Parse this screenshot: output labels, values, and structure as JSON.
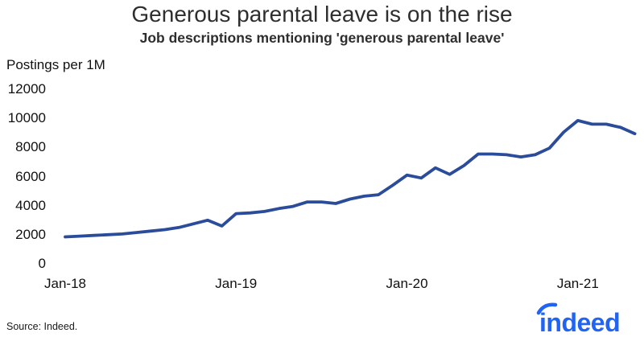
{
  "chart": {
    "title": "Generous parental leave is on the rise",
    "subtitle": "Job descriptions mentioning 'generous parental leave'",
    "y_unit_label": "Postings per 1M"
  },
  "chart_data": {
    "type": "line",
    "title": "Generous parental leave is on the rise",
    "subtitle": "Job descriptions mentioning 'generous parental leave'",
    "xlabel": "",
    "ylabel": "Postings per 1M",
    "ylim": [
      0,
      12000
    ],
    "y_ticks": [
      0,
      2000,
      4000,
      6000,
      8000,
      10000,
      12000
    ],
    "x_tick_labels": [
      "Jan-18",
      "Jan-19",
      "Jan-20",
      "Jan-21"
    ],
    "grid": false,
    "legend_position": "none",
    "line_color": "#2a4c9b",
    "x": [
      "Jan-18",
      "Feb-18",
      "Mar-18",
      "Apr-18",
      "May-18",
      "Jun-18",
      "Jul-18",
      "Aug-18",
      "Sep-18",
      "Oct-18",
      "Nov-18",
      "Dec-18",
      "Jan-19",
      "Feb-19",
      "Mar-19",
      "Apr-19",
      "May-19",
      "Jun-19",
      "Jul-19",
      "Aug-19",
      "Sep-19",
      "Oct-19",
      "Nov-19",
      "Dec-19",
      "Jan-20",
      "Feb-20",
      "Mar-20",
      "Apr-20",
      "May-20",
      "Jun-20",
      "Jul-20",
      "Aug-20",
      "Sep-20",
      "Oct-20",
      "Nov-20",
      "Dec-20",
      "Jan-21",
      "Feb-21",
      "Mar-21",
      "Apr-21",
      "May-21"
    ],
    "series": [
      {
        "name": "Postings per 1M",
        "values": [
          1850,
          1900,
          1950,
          2000,
          2050,
          2150,
          2250,
          2350,
          2500,
          2750,
          3000,
          2600,
          3450,
          3500,
          3600,
          3800,
          3950,
          4250,
          4250,
          4150,
          4450,
          4650,
          4750,
          5400,
          6100,
          5900,
          6600,
          6150,
          6750,
          7550,
          7550,
          7500,
          7350,
          7500,
          7950,
          9050,
          9850,
          9600,
          9600,
          9380,
          8950
        ]
      }
    ]
  },
  "footer": {
    "source": "Source: Indeed.",
    "logo_text": "indeed"
  },
  "colors": {
    "line": "#2a4c9b",
    "logo": "#2164f3",
    "text": "#2e2e2e"
  }
}
